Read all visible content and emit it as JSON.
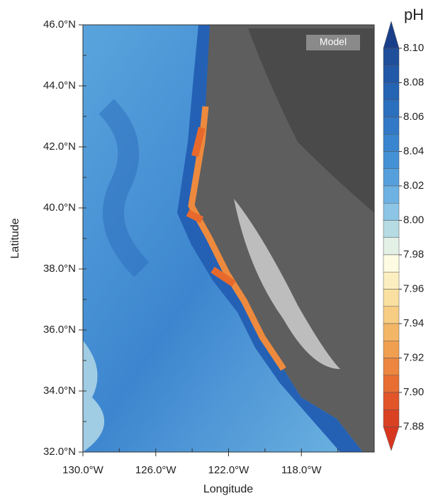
{
  "map": {
    "label": "Model",
    "x_axis": {
      "title": "Longitude",
      "ticks": [
        "130.0°W",
        "126.0°W",
        "122.0°W",
        "118.0°W"
      ]
    },
    "y_axis": {
      "title": "Latitude",
      "ticks": [
        "46.0°N",
        "44.0°N",
        "42.0°N",
        "40.0°N",
        "38.0°N",
        "36.0°N",
        "34.0°N",
        "32.0°N"
      ]
    }
  },
  "colorbar": {
    "title": "pH",
    "ticks": [
      "8.10",
      "8.08",
      "8.06",
      "8.04",
      "8.02",
      "8.00",
      "7.98",
      "7.96",
      "7.94",
      "7.92",
      "7.90",
      "7.88"
    ]
  }
}
